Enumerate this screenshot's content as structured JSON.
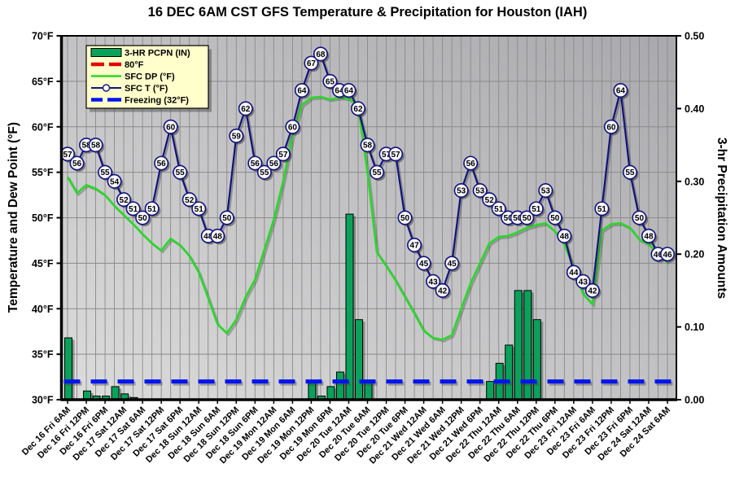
{
  "chart_data": {
    "type": "line+bar",
    "title": "16 DEC 6AM CST GFS Temperature & Precipitation for Houston (IAH)",
    "left_axis": {
      "label": "Temperature and Dew Point (°F)",
      "ticks": [
        "70°F",
        "65°F",
        "60°F",
        "55°F",
        "50°F",
        "45°F",
        "40°F",
        "35°F",
        "30°F"
      ],
      "min": 30,
      "max": 70
    },
    "right_axis": {
      "label": "3-hr Precipitation Amounts",
      "ticks": [
        "0.50",
        "0.40",
        "0.30",
        "0.20",
        "0.10",
        "0.00"
      ],
      "min": 0,
      "max": 0.5
    },
    "x_tick_labels": [
      "Dec 16 Fri 6AM",
      "Dec 16 Fri 12PM",
      "Dec 16 Fri 6PM",
      "Dec 17 Sat 12AM",
      "Dec 17 Sat 6AM",
      "Dec 17 Sat 12PM",
      "Dec 17 Sat 6PM",
      "Dec 18 Sun 12AM",
      "Dec 18 Sun 6AM",
      "Dec 18 Sun 12PM",
      "Dec 18 Sun 6PM",
      "Dec 19 Mon 12AM",
      "Dec 19 Mon 6AM",
      "Dec 19 Mon 12PM",
      "Dec 19 Mon 6PM",
      "Dec 20 Tue 12AM",
      "Dec 20 Tue 6AM",
      "Dec 20 Tue 12PM",
      "Dec 20 Tue 6PM",
      "Dec 21 Wed 12AM",
      "Dec 21 Wed 6AM",
      "Dec 21 Wed 12PM",
      "Dec 21 Wed 6PM",
      "Dec 22 Thu 12AM",
      "Dec 22 Thu 6AM",
      "Dec 22 Thu 12PM",
      "Dec 22 Thu 6PM",
      "Dec 23 Fri 12AM",
      "Dec 23 Fri 6AM",
      "Dec 23 Fri 12PM",
      "Dec 23 Fri 6PM",
      "Dec 24 Sat 12AM",
      "Dec 24 Sat 6AM"
    ],
    "points_per_label": 2,
    "legend_position": "top-left",
    "series": [
      {
        "name": "3-HR PCPN  (IN)",
        "type": "bar",
        "axis": "right",
        "values": [
          0.085,
          0,
          0.012,
          0.005,
          0.005,
          0.018,
          0.008,
          0.003,
          0,
          0,
          0,
          0,
          0,
          0,
          0,
          0,
          0,
          0,
          0,
          0,
          0,
          0,
          0,
          0,
          0,
          0,
          0.025,
          0.005,
          0.018,
          0.038,
          0.255,
          0.11,
          0.025,
          0,
          0,
          0,
          0,
          0,
          0,
          0,
          0,
          0,
          0,
          0,
          0,
          0.025,
          0.05,
          0.075,
          0.15,
          0.15,
          0.11,
          0,
          0,
          0,
          0,
          0,
          0,
          0,
          0,
          0,
          0,
          0,
          0,
          0,
          0
        ]
      },
      {
        "name": "80°F",
        "type": "reference-dashed",
        "axis": "left",
        "value": 80
      },
      {
        "name": "SFC DP (°F)",
        "type": "line",
        "axis": "left",
        "values": [
          54.5,
          52.7,
          53.6,
          53.2,
          52.5,
          51.3,
          50.3,
          49.3,
          48.2,
          47.2,
          46.4,
          47.7,
          47.0,
          45.8,
          44.0,
          41.2,
          38.3,
          37.3,
          38.8,
          41.3,
          43.2,
          46.5,
          49.8,
          54.0,
          59.0,
          62.4,
          63.2,
          63.3,
          63.0,
          63.2,
          63.1,
          62.3,
          55.0,
          46.2,
          44.7,
          43.1,
          41.3,
          39.5,
          37.6,
          36.8,
          36.6,
          37.1,
          40.0,
          42.8,
          45.0,
          47.2,
          47.9,
          48.0,
          48.4,
          48.9,
          49.2,
          49.4,
          48.5,
          47.1,
          44.5,
          41.6,
          40.5,
          48.6,
          49.3,
          49.4,
          48.9,
          47.6,
          47.1,
          46.0,
          45.1
        ]
      },
      {
        "name": "SFC T (°F)",
        "type": "line-markers",
        "axis": "left",
        "values": [
          57,
          56,
          58,
          58,
          55,
          54,
          52,
          51,
          50,
          51,
          56,
          60,
          55,
          52,
          51,
          48,
          48,
          50,
          59,
          62,
          56,
          55,
          56,
          57,
          60,
          64,
          67,
          68,
          65,
          64,
          64,
          62,
          58,
          55,
          57,
          57,
          50,
          47,
          45,
          43,
          42,
          45,
          53,
          56,
          53,
          52,
          51,
          50,
          50,
          50,
          51,
          53,
          50,
          48,
          44,
          43,
          42,
          51,
          60,
          64,
          55,
          50,
          48,
          46,
          46
        ]
      },
      {
        "name": "Freezing (32°F)",
        "type": "reference-dashed",
        "axis": "left",
        "value": 32
      }
    ],
    "colors": {
      "bar": "#0aa25a",
      "dew_point": "#28d828",
      "temperature": "#12127e",
      "freezing": "#0014f0",
      "ref_80": "#e80000",
      "legend_bg": "#ffffcc",
      "plot_bg_top": "#a9a9ad",
      "plot_bg_bottom": "#dcdcdc",
      "grid": "#8a8a8a"
    }
  }
}
